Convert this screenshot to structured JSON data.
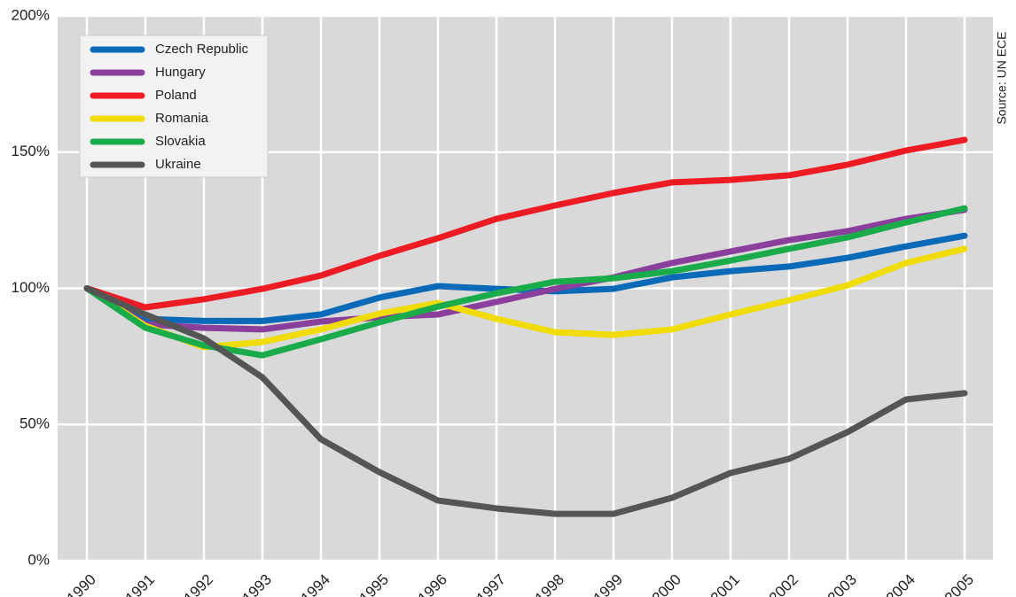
{
  "chart_data": {
    "type": "line",
    "source": "Source: UN ECE",
    "categories": [
      "1990",
      "1991",
      "1992",
      "1993",
      "1994",
      "1995",
      "1996",
      "1997",
      "1998",
      "1999",
      "2000",
      "2001",
      "2002",
      "2003",
      "2004",
      "2005"
    ],
    "ylim": [
      0,
      200
    ],
    "yticks": [
      {
        "value": 0,
        "label": "0%"
      },
      {
        "value": 50,
        "label": "50%"
      },
      {
        "value": 100,
        "label": "100%"
      },
      {
        "value": 150,
        "label": "150%"
      },
      {
        "value": 200,
        "label": "200%"
      }
    ],
    "grid": true,
    "legend": "upper left",
    "series": [
      {
        "name": "Czech Republic",
        "color": "#0a6ab8",
        "values": [
          100,
          88.8,
          88,
          88,
          90.4,
          96.6,
          100.8,
          99.8,
          98.9,
          99.8,
          104,
          106.3,
          108,
          111.2,
          115.4,
          119.3
        ]
      },
      {
        "name": "Hungary",
        "color": "#8b3f9c",
        "values": [
          100,
          86.8,
          85.5,
          84.9,
          87.8,
          89.4,
          90.4,
          95,
          99.8,
          104,
          109.3,
          113.5,
          117.7,
          121,
          125.5,
          128.8
        ]
      },
      {
        "name": "Poland",
        "color": "#ed1c24",
        "values": [
          100,
          93,
          96,
          99.8,
          104.7,
          111.9,
          118.4,
          125.5,
          130.4,
          135,
          138.9,
          139.8,
          141.5,
          145.4,
          150.6,
          154.5
        ]
      },
      {
        "name": "Romania",
        "color": "#f0dc00",
        "values": [
          100,
          86.2,
          78.4,
          80.3,
          84.9,
          90.7,
          94.6,
          88.8,
          83.9,
          82.9,
          84.9,
          90.4,
          95.6,
          101.1,
          109.3,
          114.5
        ]
      },
      {
        "name": "Slovakia",
        "color": "#1aab4b",
        "values": [
          100,
          85.5,
          79,
          75.4,
          81.3,
          87.5,
          93.3,
          98.2,
          102.4,
          103.7,
          106.3,
          110.2,
          114.5,
          118.7,
          124.2,
          129.4
        ]
      },
      {
        "name": "Ukraine",
        "color": "#555555",
        "values": [
          100,
          90.4,
          81.6,
          67.3,
          44.6,
          32.5,
          22.1,
          19.2,
          17.2,
          17.2,
          23.1,
          32.2,
          37.4,
          47.2,
          59.2,
          61.5
        ]
      }
    ]
  }
}
